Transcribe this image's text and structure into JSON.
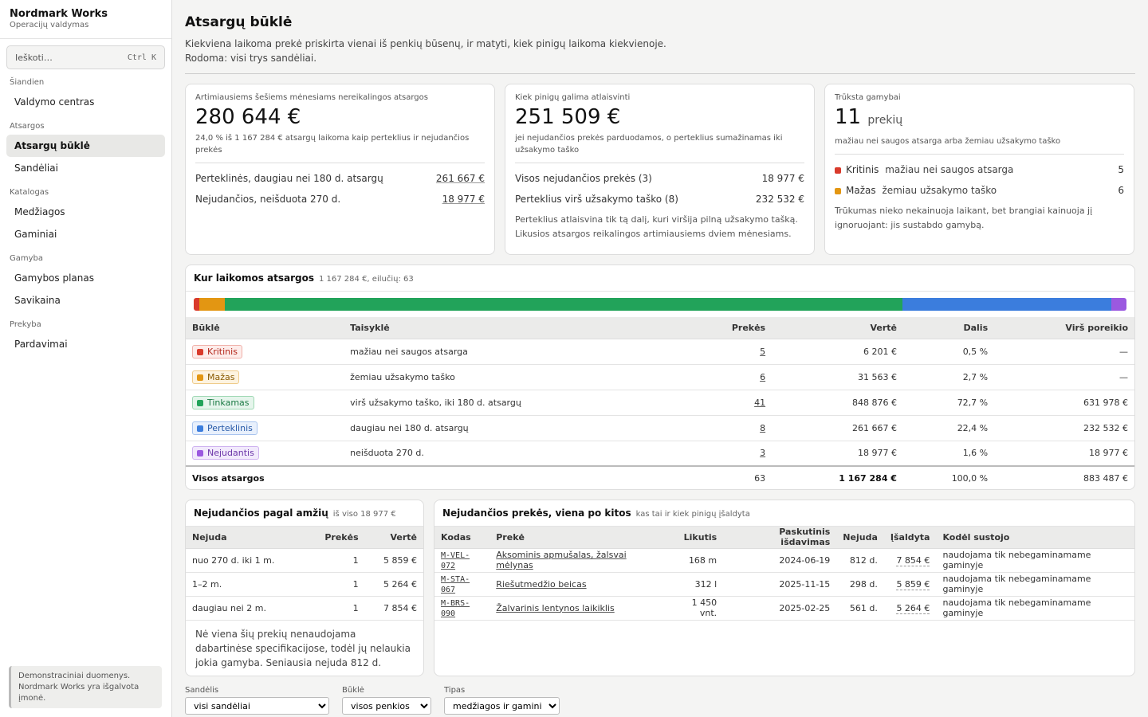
{
  "brand": {
    "name": "Nordmark Works",
    "sub": "Operacijų valdymas"
  },
  "search": {
    "placeholder": "Ieškoti…",
    "shortcut": "Ctrl K"
  },
  "nav": [
    {
      "section": "Šiandien",
      "items": [
        {
          "label": "Valdymo centras",
          "active": false
        }
      ]
    },
    {
      "section": "Atsargos",
      "items": [
        {
          "label": "Atsargų būklė",
          "active": true
        },
        {
          "label": "Sandėliai",
          "active": false
        }
      ]
    },
    {
      "section": "Katalogas",
      "items": [
        {
          "label": "Medžiagos",
          "active": false
        },
        {
          "label": "Gaminiai",
          "active": false
        }
      ]
    },
    {
      "section": "Gamyba",
      "items": [
        {
          "label": "Gamybos planas",
          "active": false
        },
        {
          "label": "Savikaina",
          "active": false
        }
      ]
    },
    {
      "section": "Prekyba",
      "items": [
        {
          "label": "Pardavimai",
          "active": false
        }
      ]
    }
  ],
  "demo_note": "Demonstraciniai duomenys. Nordmark Works yra išgalvota įmonė.",
  "page": {
    "title": "Atsargų būklė",
    "desc1": "Kiekviena laikoma prekė priskirta vienai iš penkių būsenų, ir matyti, kiek pinigų laikoma kiekvienoje.",
    "desc2": "Rodoma: visi trys sandėliai."
  },
  "kpi1": {
    "title": "Artimiausiems šešiems mėnesiams nereikalingos atsargos",
    "value": "280 644 €",
    "sub": "24,0 % iš 1 167 284 € atsargų laikoma kaip perteklius ir nejudančios prekės",
    "rows": [
      {
        "label": "Perteklinės, daugiau nei 180 d. atsargų",
        "value": "261 667 €"
      },
      {
        "label": "Nejudančios, neišduota 270 d.",
        "value": "18 977 €"
      }
    ]
  },
  "kpi2": {
    "title": "Kiek pinigų galima atlaisvinti",
    "value": "251 509 €",
    "sub": "jei nejudančios prekės parduodamos, o perteklius sumažinamas iki užsakymo taško",
    "rows": [
      {
        "label": "Visos nejudančios prekės (3)",
        "value": "18 977 €"
      },
      {
        "label": "Perteklius virš užsakymo taško (8)",
        "value": "232 532 €"
      }
    ],
    "note": "Perteklius atlaisvina tik tą dalį, kuri viršija pilną užsakymo tašką. Likusios atsargos reikalingos artimiausiems dviem mėnesiams."
  },
  "kpi3": {
    "title": "Trūksta gamybai",
    "value": "11",
    "unit": "prekių",
    "sub": "mažiau nei saugos atsarga arba žemiau užsakymo taško",
    "rows": [
      {
        "name": "Kritinis",
        "desc": "mažiau nei saugos atsarga",
        "count": "5",
        "color": "#d93a2b"
      },
      {
        "name": "Mažas",
        "desc": "žemiau užsakymo taško",
        "count": "6",
        "color": "#e39612"
      }
    ],
    "note": "Trūkumas nieko nekainuoja laikant, bet brangiai kainuoja jį ignoruojant: jis sustabdo gamybą."
  },
  "where": {
    "title": "Kur laikomos atsargos",
    "sub": "1 167 284 €, eilučių: 63",
    "headers": [
      "Būklė",
      "Taisyklė",
      "Prekės",
      "Vertė",
      "Dalis",
      "Virš poreikio"
    ],
    "rows": [
      {
        "status": "Kritinis",
        "color": "#d93a2b",
        "bg": "#fdecea",
        "border": "#f0b1aa",
        "text": "#b3261a",
        "rule": "mažiau nei saugos atsarga",
        "items": "5",
        "value": "6 201 €",
        "share": "0,5 %",
        "share_num": 0.5,
        "excess": "—"
      },
      {
        "status": "Mažas",
        "color": "#e39612",
        "bg": "#fdf3e0",
        "border": "#efcb8a",
        "text": "#8a5a00",
        "rule": "žemiau užsakymo taško",
        "items": "6",
        "value": "31 563 €",
        "share": "2,7 %",
        "share_num": 2.7,
        "excess": "—"
      },
      {
        "status": "Tinkamas",
        "color": "#22a35a",
        "bg": "#e6f5ec",
        "border": "#9ed8b3",
        "text": "#1b7a44",
        "rule": "virš užsakymo taško, iki 180 d. atsargų",
        "items": "41",
        "value": "848 876 €",
        "share": "72,7 %",
        "share_num": 72.7,
        "excess": "631 978 €"
      },
      {
        "status": "Perteklinis",
        "color": "#3b7ddd",
        "bg": "#e8f0fc",
        "border": "#a8c4ef",
        "text": "#2659a8",
        "rule": "daugiau nei 180 d. atsargų",
        "items": "8",
        "value": "261 667 €",
        "share": "22,4 %",
        "share_num": 22.4,
        "excess": "232 532 €"
      },
      {
        "status": "Nejudantis",
        "color": "#9b59e0",
        "bg": "#f2eafc",
        "border": "#cfb2f0",
        "text": "#6b35a8",
        "rule": "neišduota 270 d.",
        "items": "3",
        "value": "18 977 €",
        "share": "1,6 %",
        "share_num": 1.6,
        "excess": "18 977 €"
      }
    ],
    "total": {
      "label": "Visos atsargos",
      "items": "63",
      "value": "1 167 284 €",
      "share": "100,0 %",
      "excess": "883 487 €"
    }
  },
  "age": {
    "title": "Nejudančios pagal amžių",
    "sub": "iš viso 18 977 €",
    "headers": [
      "Nejuda",
      "Prekės",
      "Vertė"
    ],
    "rows": [
      {
        "range": "nuo 270 d. iki 1 m.",
        "items": "1",
        "value": "5 859 €"
      },
      {
        "range": "1–2 m.",
        "items": "1",
        "value": "5 264 €"
      },
      {
        "range": "daugiau nei 2 m.",
        "items": "1",
        "value": "7 854 €"
      }
    ],
    "note": "Nė viena šių prekių nenaudojama dabartinėse specifikacijose, todėl jų nelaukia jokia gamyba. Seniausia nejuda 812 d."
  },
  "idle": {
    "title": "Nejudančios prekės, viena po kitos",
    "sub": "kas tai ir kiek pinigų įšaldyta",
    "headers": [
      "Kodas",
      "Prekė",
      "Likutis",
      "Paskutinis išdavimas",
      "Nejuda",
      "Įšaldyta",
      "Kodėl sustojo"
    ],
    "rows": [
      {
        "code": "M-VEL-072",
        "name": "Aksominis apmušalas, žalsvai mėlynas",
        "stock": "168 m",
        "last": "2024-06-19",
        "idle": "812 d.",
        "frozen": "7 854 €",
        "why": "naudojama tik nebegaminamame gaminyje"
      },
      {
        "code": "M-STA-067",
        "name": "Riešutmedžio beicas",
        "stock": "312 l",
        "last": "2025-11-15",
        "idle": "298 d.",
        "frozen": "5 859 €",
        "why": "naudojama tik nebegaminamame gaminyje"
      },
      {
        "code": "M-BRS-090",
        "name": "Žalvarinis lentynos laikiklis",
        "stock": "1 450 vnt.",
        "last": "2025-02-25",
        "idle": "561 d.",
        "frozen": "5 264 €",
        "why": "naudojama tik nebegaminamame gaminyje"
      }
    ]
  },
  "filters": [
    {
      "label": "Sandėlis",
      "value": "visi sandėliai"
    },
    {
      "label": "Būklė",
      "value": "visos penkios"
    },
    {
      "label": "Tipas",
      "value": "medžiagos ir gaminiai"
    }
  ]
}
